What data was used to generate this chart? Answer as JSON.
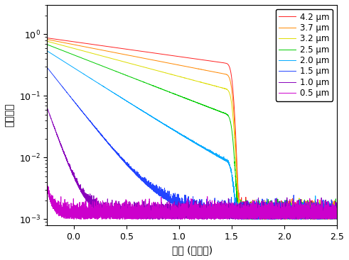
{
  "title": "",
  "xlabel": "時間 (ナノ秒)",
  "ylabel": "発光強度",
  "xlim": [
    -0.25,
    2.5
  ],
  "ylim_log": [
    0.0008,
    3.0
  ],
  "xticks": [
    0.0,
    0.5,
    1.0,
    1.5,
    2.0,
    2.5
  ],
  "series": [
    {
      "label": "4.2 μm",
      "color": "#ff2222",
      "tau": 1.8,
      "noise_amp": 0.00035
    },
    {
      "label": "3.7 μm",
      "color": "#ff8800",
      "tau": 1.3,
      "noise_amp": 0.00035
    },
    {
      "label": "3.2 μm",
      "color": "#dddd00",
      "tau": 0.95,
      "noise_amp": 0.00035
    },
    {
      "label": "2.5 μm",
      "color": "#00cc00",
      "tau": 0.65,
      "noise_amp": 0.00035
    },
    {
      "label": "2.0 μm",
      "color": "#00aaff",
      "tau": 0.4,
      "noise_amp": 0.00035
    },
    {
      "label": "1.5 μm",
      "color": "#2244ff",
      "tau": 0.2,
      "noise_amp": 0.00035
    },
    {
      "label": "1.0 μm",
      "color": "#8800bb",
      "tau": 0.09,
      "noise_amp": 0.00035
    },
    {
      "label": "0.5 μm",
      "color": "#cc00cc",
      "tau": 0.04,
      "noise_amp": 0.00035
    }
  ],
  "noise_floor": 0.001,
  "irf_sigma": 0.022,
  "peak_time": 0.0,
  "xlabel_fontsize": 10,
  "ylabel_fontsize": 10,
  "tick_fontsize": 9,
  "legend_fontsize": 8.5
}
